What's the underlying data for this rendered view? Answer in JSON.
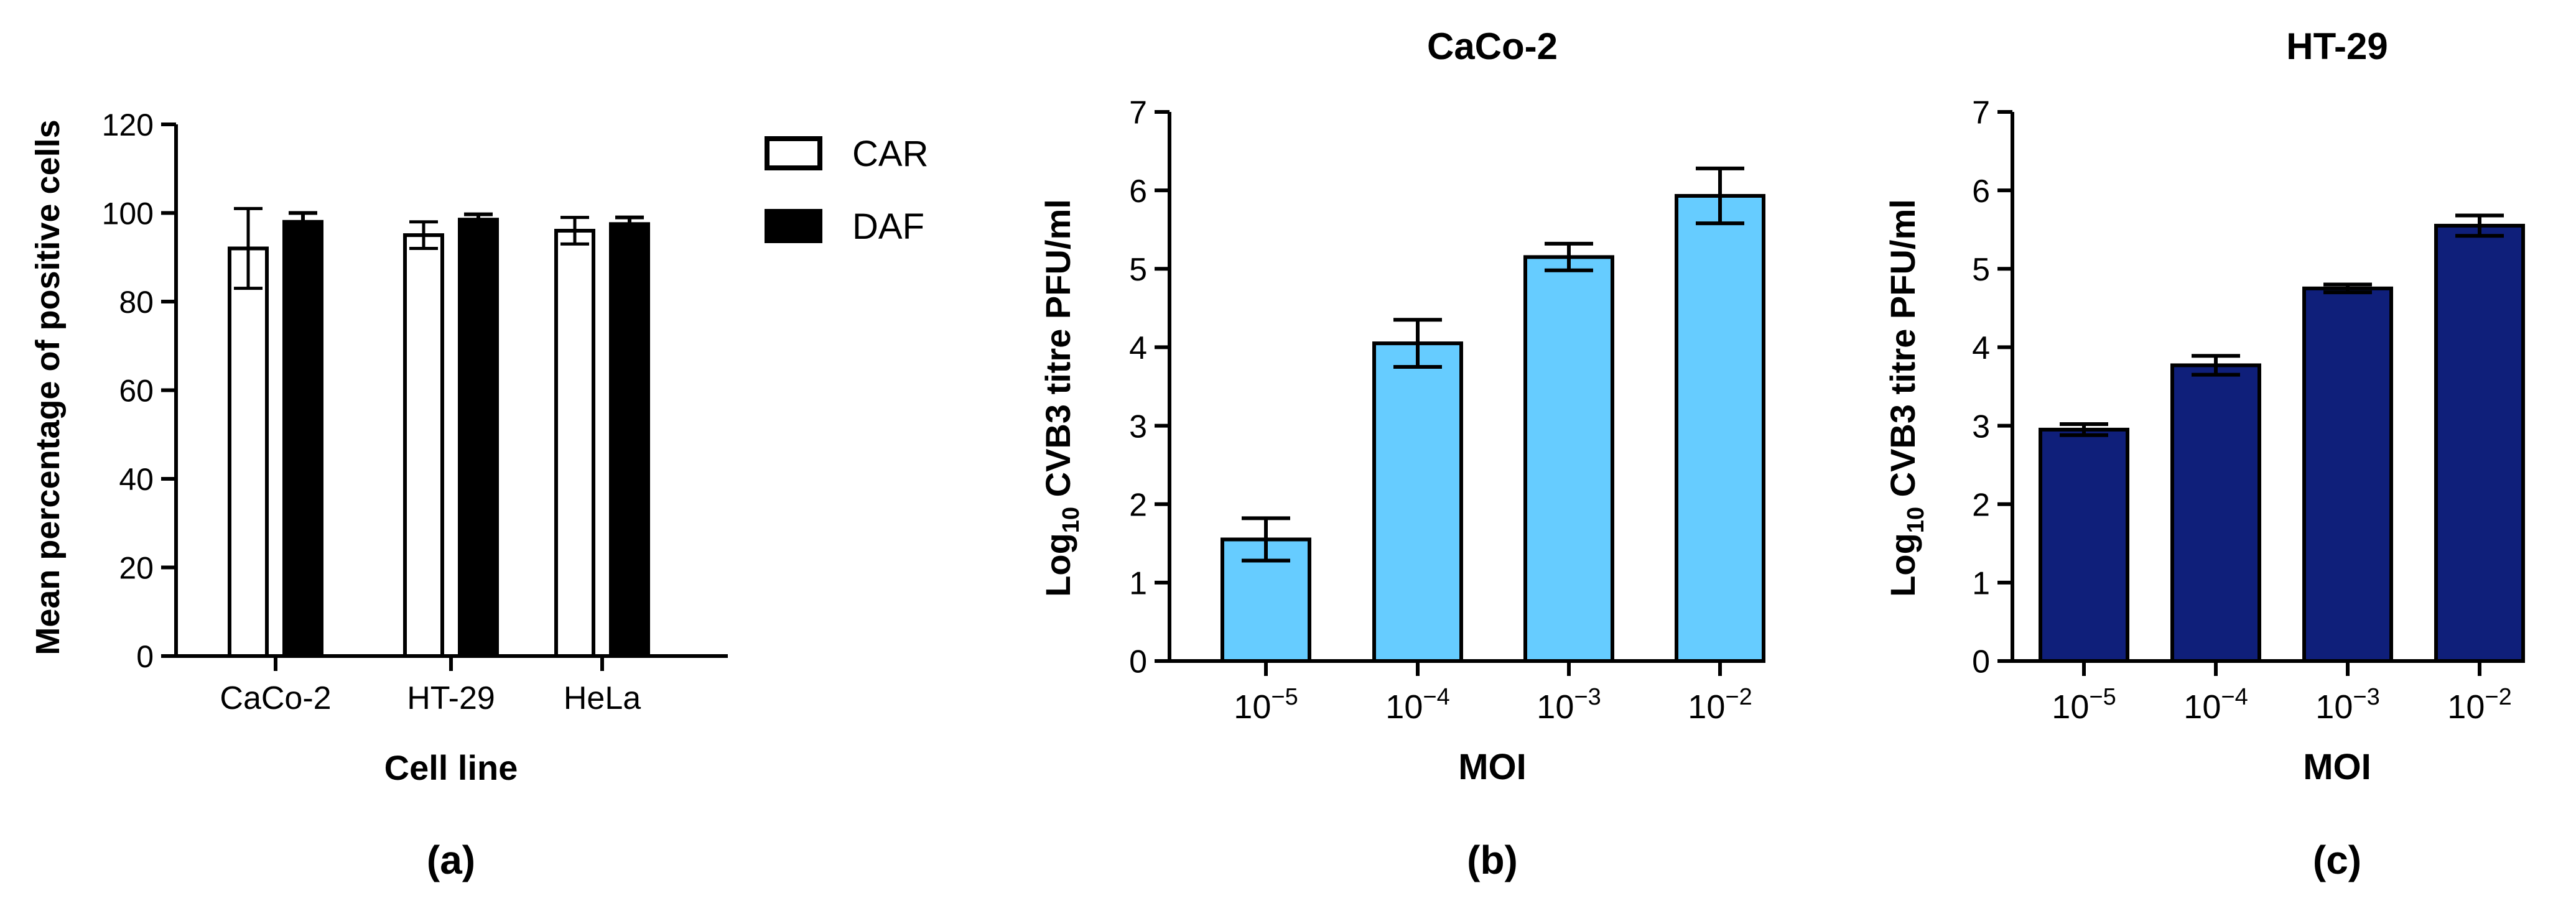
{
  "panels": [
    {
      "panel_label": "(a)",
      "title": "",
      "legend": [
        {
          "label": "CAR",
          "fill": "#ffffff"
        },
        {
          "label": "DAF",
          "fill": "#000000"
        }
      ]
    },
    {
      "panel_label": "(b)",
      "title": "CaCo-2",
      "ylabel_main": "Log",
      "ylabel_sub": "10",
      "ylabel_rest": " CVB3 titre PFU/ml",
      "tick_base": "10",
      "tick_exps": [
        "−5",
        "−4",
        "−3",
        "−2"
      ]
    },
    {
      "panel_label": "(c)",
      "title": "HT-29",
      "ylabel_main": "Log",
      "ylabel_sub": "10",
      "ylabel_rest": " CVB3 titre PFU/ml",
      "tick_base": "10",
      "tick_exps": [
        "−5",
        "−4",
        "−3",
        "−2"
      ]
    }
  ],
  "chart_data": [
    {
      "type": "bar",
      "title": "",
      "xlabel": "Cell line",
      "ylabel": "Mean percentage of positive cells",
      "categories": [
        "CaCo-2",
        "HT-29",
        "HeLa"
      ],
      "ylim": [
        0,
        120
      ],
      "yticks": [
        0,
        20,
        40,
        60,
        80,
        100,
        120
      ],
      "legend_position": "top-right-outside",
      "series": [
        {
          "name": "CAR",
          "values": [
            92,
            95,
            96
          ],
          "errors": [
            9,
            3,
            3
          ],
          "color": "#ffffff"
        },
        {
          "name": "DAF",
          "values": [
            98,
            98.5,
            97.5
          ],
          "errors": [
            2,
            1.2,
            1.5
          ],
          "color": "#000000"
        }
      ]
    },
    {
      "type": "bar",
      "title": "CaCo-2",
      "xlabel": "MOI",
      "ylabel": "Log10 CVB3 titre PFU/ml",
      "categories": [
        "10−5",
        "10−4",
        "10−3",
        "10−2"
      ],
      "ylim": [
        0,
        7
      ],
      "yticks": [
        0,
        1,
        2,
        3,
        4,
        5,
        6,
        7
      ],
      "series": [
        {
          "values": [
            1.55,
            4.05,
            5.15,
            5.93
          ],
          "errors": [
            0.27,
            0.3,
            0.17,
            0.35
          ],
          "color": "#66ccff"
        }
      ]
    },
    {
      "type": "bar",
      "title": "HT-29",
      "xlabel": "MOI",
      "ylabel": "Log10 CVB3 titre PFU/ml",
      "categories": [
        "10−5",
        "10−4",
        "10−3",
        "10−2"
      ],
      "ylim": [
        0,
        7
      ],
      "yticks": [
        0,
        1,
        2,
        3,
        4,
        5,
        6,
        7
      ],
      "series": [
        {
          "values": [
            2.95,
            3.77,
            4.75,
            5.55
          ],
          "errors": [
            0.07,
            0.12,
            0.05,
            0.13
          ],
          "color": "#0f1f7a"
        }
      ]
    }
  ]
}
